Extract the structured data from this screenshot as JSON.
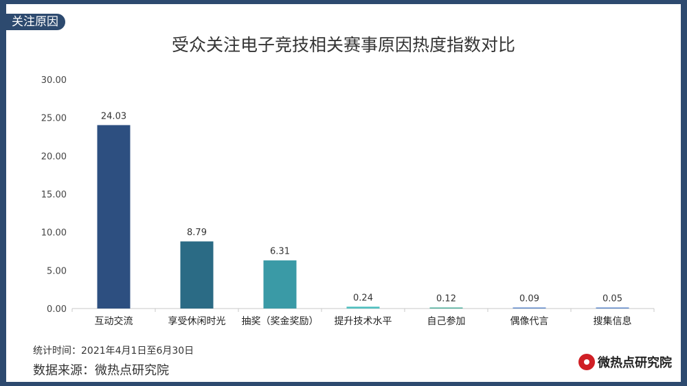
{
  "header": {
    "section_tab": "关注原因",
    "title": "受众关注电子竞技相关赛事原因热度指数对比"
  },
  "chart_data": {
    "type": "bar",
    "title": "受众关注电子竞技相关赛事原因热度指数对比",
    "categories": [
      "互动交流",
      "享受休闲时光",
      "抽奖（奖金奖励）",
      "提升技术水平",
      "自己参加",
      "偶像代言",
      "搜集信息"
    ],
    "values": [
      24.03,
      8.79,
      6.31,
      0.24,
      0.12,
      0.09,
      0.05
    ],
    "value_labels": [
      "24.03",
      "8.79",
      "6.31",
      "0.24",
      "0.12",
      "0.09",
      "0.05"
    ],
    "bar_colors": [
      "#2d4f80",
      "#2b6b85",
      "#3a9aa6",
      "#4fbfbf",
      "#4aae9a",
      "#5b86c8",
      "#5b86c8"
    ],
    "y_ticks": [
      "0.00",
      "5.00",
      "10.00",
      "15.00",
      "20.00",
      "25.00",
      "30.00"
    ],
    "ylim": [
      0,
      30
    ],
    "xlabel": "",
    "ylabel": "",
    "grid": false,
    "legend": "none"
  },
  "footer": {
    "period": "统计时间：2021年4月1日至6月30日",
    "source": "数据来源：微热点研究院",
    "brand": "微热点研究院"
  },
  "colors": {
    "frame": "#2d4a6f",
    "brand_red": "#d01f25"
  }
}
